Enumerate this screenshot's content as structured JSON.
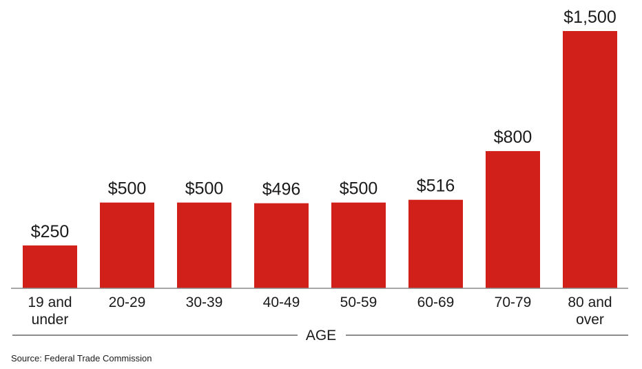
{
  "chart_data": {
    "type": "bar",
    "categories": [
      "19 and under",
      "20-29",
      "30-39",
      "40-49",
      "50-59",
      "60-69",
      "70-79",
      "80 and over"
    ],
    "category_lines": [
      [
        "19 and",
        "under"
      ],
      [
        "20-29"
      ],
      [
        "30-39"
      ],
      [
        "40-49"
      ],
      [
        "50-59"
      ],
      [
        "60-69"
      ],
      [
        "70-79"
      ],
      [
        "80 and",
        "over"
      ]
    ],
    "values": [
      250,
      500,
      500,
      496,
      500,
      516,
      800,
      1500
    ],
    "value_labels": [
      "$250",
      "$500",
      "$500",
      "$496",
      "$500",
      "$516",
      "$800",
      "$1,500"
    ],
    "xlabel": "AGE",
    "ylabel": "",
    "ylim": [
      0,
      1500
    ],
    "grid": false,
    "legend": "none",
    "bar_color": "#d11f1a"
  },
  "source": "Source: Federal Trade Commission"
}
